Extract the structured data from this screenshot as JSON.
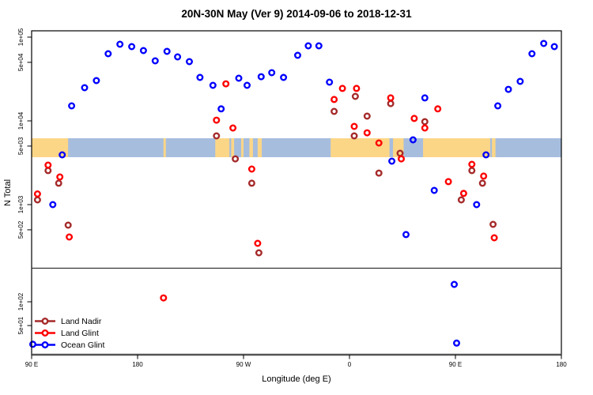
{
  "title": "20N-30N May (Ver 9)   2014-09-06 to 2018-12-31",
  "colors": {
    "land_nadir": "#A52A2A",
    "land_glint": "#FF0000",
    "ocean_glint": "#0000FF",
    "map_ocean": "#A6BDDE",
    "map_land": "#FCD687",
    "frame": "#000000",
    "heavy_line": "#555555"
  },
  "axes": {
    "x_label": "Longitude (deg E)",
    "y_label": "N Total",
    "x_ticks": [
      {
        "deg": 0,
        "label": "90 E"
      },
      {
        "deg": 90,
        "label": "180"
      },
      {
        "deg": 180,
        "label": "90 W"
      },
      {
        "deg": 270,
        "label": "0"
      },
      {
        "deg": 360,
        "label": "90 E"
      },
      {
        "deg": 450,
        "label": "180"
      }
    ],
    "y_ticks_main": [
      {
        "n": 100000,
        "label": "1e+05"
      },
      {
        "n": 50000,
        "label": "5e+04"
      },
      {
        "n": 10000,
        "label": "1e+04"
      },
      {
        "n": 5000,
        "label": "5e+03"
      },
      {
        "n": 1000,
        "label": "1e+03"
      },
      {
        "n": 500,
        "label": "5e+02"
      }
    ],
    "y_ticks_lower": [
      {
        "n": 100,
        "label": "1e+02"
      },
      {
        "n": 50,
        "label": "5e+01"
      }
    ]
  },
  "legend": {
    "items": [
      {
        "label": "Land Nadir",
        "color": "#A52A2A"
      },
      {
        "label": "Land Glint",
        "color": "#FF0000"
      },
      {
        "label": "Ocean Glint",
        "color": "#0000FF"
      }
    ]
  },
  "map_band": {
    "ocean_color": "#A6BDDE",
    "land_color": "#FCD687",
    "n_range_approx": [
      3700,
      6300
    ],
    "land_segments_deg": [
      [
        0,
        31
      ],
      [
        112,
        114
      ],
      [
        156,
        168
      ],
      [
        169.5,
        172
      ],
      [
        178,
        180
      ],
      [
        185,
        188
      ],
      [
        192,
        195.5
      ],
      [
        254,
        304
      ],
      [
        307,
        316
      ],
      [
        332.5,
        389.5
      ],
      [
        391,
        394
      ]
    ]
  },
  "chart_data": {
    "type": "scatter",
    "title": "20N-30N May (Ver 9)   2014-09-06 to 2018-12-31",
    "xlabel": "Longitude (deg E)",
    "ylabel": "N Total",
    "y_scale": "log",
    "x_axis": {
      "description": "Axis spans 450 degrees of longitude starting at 90E, wrapping eastward through 180, 90W, 0, 90E to 180; deg = degrees east of 90E. Points between 90E and 180E are plotted twice (deg and deg+360).",
      "tick_axis_deg": [
        0,
        90,
        180,
        270,
        360,
        450
      ],
      "tick_labels": [
        "90 E",
        "180",
        "90 W",
        "0",
        "90 E",
        "180"
      ]
    },
    "y_axis": {
      "main_panel_range": [
        200,
        100000
      ],
      "lower_panel_range": [
        20,
        170
      ],
      "panel_break_n_approx": 170,
      "grid": false
    },
    "legend_position": "bottom-left",
    "series": [
      {
        "name": "Land Nadir",
        "color": "#A52A2A",
        "points": [
          {
            "deg": 5,
            "n": 1140
          },
          {
            "deg": 14,
            "n": 2550
          },
          {
            "deg": 23,
            "n": 1800
          },
          {
            "deg": 31,
            "n": 569
          },
          {
            "deg": 157,
            "n": 6620
          },
          {
            "deg": 173,
            "n": 3520
          },
          {
            "deg": 187,
            "n": 1800
          },
          {
            "deg": 193,
            "n": 266
          },
          {
            "deg": 257,
            "n": 12970
          },
          {
            "deg": 274,
            "n": 6620
          },
          {
            "deg": 275,
            "n": 19600
          },
          {
            "deg": 285,
            "n": 11400
          },
          {
            "deg": 295,
            "n": 2380
          },
          {
            "deg": 305,
            "n": 16100
          },
          {
            "deg": 313,
            "n": 4100
          },
          {
            "deg": 334,
            "n": 9790
          },
          {
            "deg": 365,
            "n": 1140
          },
          {
            "deg": 374,
            "n": 2550
          },
          {
            "deg": 383,
            "n": 1800
          },
          {
            "deg": 392,
            "n": 581
          }
        ]
      },
      {
        "name": "Land Glint",
        "color": "#FF0000",
        "points": [
          {
            "deg": 5,
            "n": 1340
          },
          {
            "deg": 14,
            "n": 2960
          },
          {
            "deg": 24,
            "n": 2140
          },
          {
            "deg": 32,
            "n": 410
          },
          {
            "deg": 112,
            "n": 112,
            "panel": "lower"
          },
          {
            "deg": 157,
            "n": 10200
          },
          {
            "deg": 165,
            "n": 27700
          },
          {
            "deg": 171,
            "n": 8220
          },
          {
            "deg": 187,
            "n": 2660
          },
          {
            "deg": 192,
            "n": 345
          },
          {
            "deg": 257,
            "n": 18000
          },
          {
            "deg": 264,
            "n": 24400
          },
          {
            "deg": 274,
            "n": 8590
          },
          {
            "deg": 276,
            "n": 24400
          },
          {
            "deg": 285,
            "n": 7210
          },
          {
            "deg": 295,
            "n": 5440
          },
          {
            "deg": 305,
            "n": 18800
          },
          {
            "deg": 314,
            "n": 3520
          },
          {
            "deg": 325,
            "n": 10700
          },
          {
            "deg": 334,
            "n": 8220
          },
          {
            "deg": 345,
            "n": 13900
          },
          {
            "deg": 354,
            "n": 1880
          },
          {
            "deg": 367,
            "n": 1360
          },
          {
            "deg": 374,
            "n": 3030
          },
          {
            "deg": 384,
            "n": 2190
          },
          {
            "deg": 393,
            "n": 402
          }
        ]
      },
      {
        "name": "Ocean Glint",
        "color": "#0000FF",
        "points": [
          {
            "deg": 1,
            "n": 29,
            "panel": "lower"
          },
          {
            "deg": 18,
            "n": 1000
          },
          {
            "deg": 26,
            "n": 3930
          },
          {
            "deg": 34,
            "n": 15100
          },
          {
            "deg": 45,
            "n": 24900
          },
          {
            "deg": 55,
            "n": 30300
          },
          {
            "deg": 65,
            "n": 63400
          },
          {
            "deg": 75,
            "n": 82200
          },
          {
            "deg": 85,
            "n": 77100
          },
          {
            "deg": 95,
            "n": 69100
          },
          {
            "deg": 105,
            "n": 52100
          },
          {
            "deg": 115,
            "n": 67600
          },
          {
            "deg": 124,
            "n": 58100
          },
          {
            "deg": 134,
            "n": 51000
          },
          {
            "deg": 143,
            "n": 33000
          },
          {
            "deg": 154,
            "n": 26600
          },
          {
            "deg": 161,
            "n": 13900
          },
          {
            "deg": 176,
            "n": 32300
          },
          {
            "deg": 183,
            "n": 26600
          },
          {
            "deg": 195,
            "n": 33700
          },
          {
            "deg": 204,
            "n": 37600
          },
          {
            "deg": 214,
            "n": 33000
          },
          {
            "deg": 226,
            "n": 60700
          },
          {
            "deg": 235,
            "n": 78700
          },
          {
            "deg": 244,
            "n": 78700
          },
          {
            "deg": 253,
            "n": 29000
          },
          {
            "deg": 306,
            "n": 3300
          },
          {
            "deg": 318,
            "n": 439
          },
          {
            "deg": 324,
            "n": 5940
          },
          {
            "deg": 334,
            "n": 18800
          },
          {
            "deg": 342,
            "n": 1480
          },
          {
            "deg": 359,
            "n": 166,
            "panel": "lower"
          },
          {
            "deg": 361,
            "n": 30,
            "panel": "lower"
          },
          {
            "deg": 378,
            "n": 1000
          },
          {
            "deg": 386,
            "n": 3930
          },
          {
            "deg": 396,
            "n": 15100
          },
          {
            "deg": 405,
            "n": 23800
          },
          {
            "deg": 415,
            "n": 29600
          },
          {
            "deg": 425,
            "n": 63400
          },
          {
            "deg": 435,
            "n": 84100
          },
          {
            "deg": 444,
            "n": 77100
          }
        ]
      }
    ]
  }
}
